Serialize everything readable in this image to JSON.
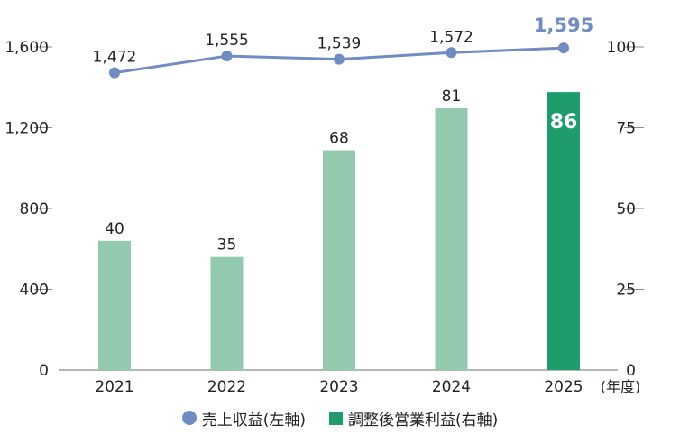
{
  "chart_data": {
    "type": "bar",
    "categories": [
      "2021",
      "2022",
      "2023",
      "2024",
      "2025"
    ],
    "x_unit": "(年度)",
    "series": [
      {
        "name": "売上収益(左軸)",
        "type": "line",
        "axis": "left",
        "values": [
          1472,
          1555,
          1539,
          1572,
          1595
        ],
        "labels": [
          "1,472",
          "1,555",
          "1,539",
          "1,572",
          "1,595"
        ]
      },
      {
        "name": "調整後営業利益(右軸)",
        "type": "bar",
        "axis": "right",
        "values": [
          40,
          35,
          68,
          81,
          86
        ],
        "labels": [
          "40",
          "35",
          "68",
          "81",
          "86"
        ]
      }
    ],
    "left_axis": {
      "range": [
        0,
        1600
      ],
      "ticks": [
        0,
        400,
        800,
        1200,
        1600
      ],
      "tick_labels": [
        "0",
        "400",
        "800",
        "1,200",
        "1,600"
      ]
    },
    "right_axis": {
      "range": [
        0,
        100
      ],
      "ticks": [
        0,
        25,
        50,
        75,
        100
      ],
      "tick_labels": [
        "0",
        "25",
        "50",
        "75",
        "100"
      ]
    },
    "colors": {
      "line": "#6f8cc4",
      "bar": "#93c9ad",
      "bar_highlight": "#1f9c6b",
      "highlight_label": "#ffffff",
      "line_highlight_label": "#6f8cc4"
    },
    "highlight_index": 4,
    "grid": false,
    "legend_position": "bottom"
  },
  "legend": {
    "line_label": "売上収益(左軸)",
    "bar_label": "調整後営業利益(右軸)"
  }
}
